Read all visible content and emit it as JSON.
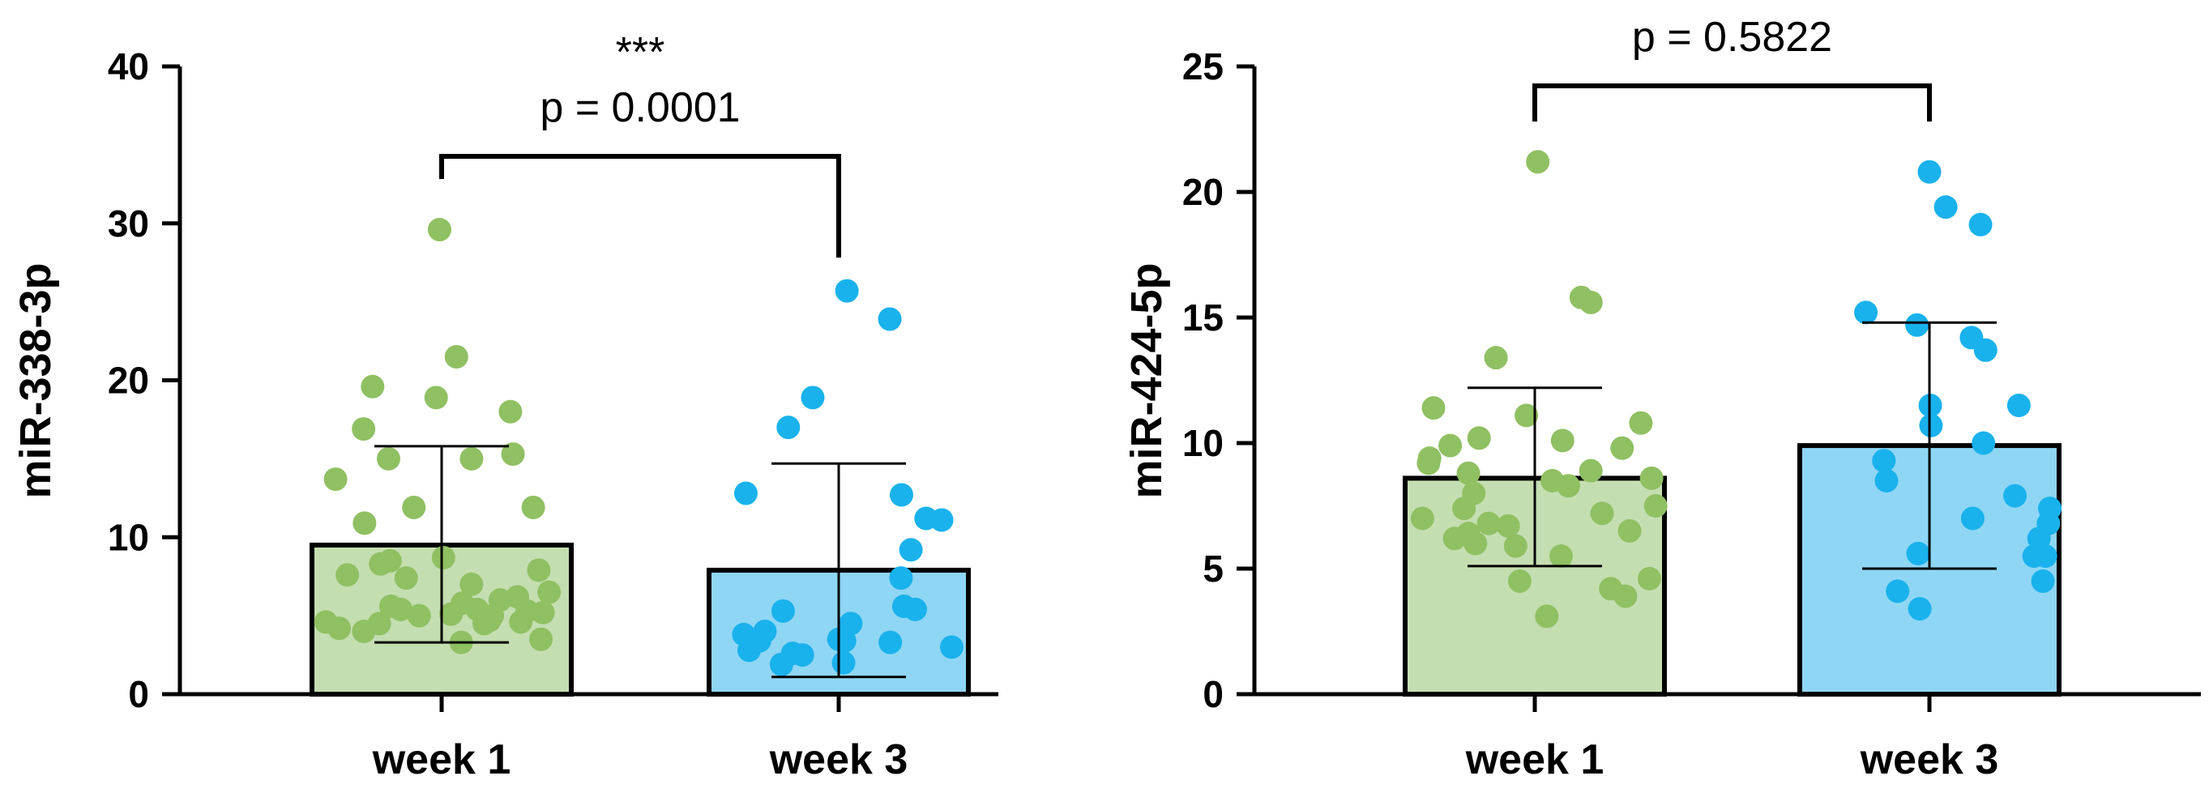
{
  "chart_data": [
    {
      "type": "bar",
      "title": "",
      "xlabel": "",
      "ylabel": "miR-338-3p",
      "ylim": [
        0,
        40
      ],
      "yticks": [
        0,
        10,
        20,
        30,
        40
      ],
      "categories": [
        "week 1",
        "week 3"
      ],
      "bars": [
        {
          "category": "week 1",
          "mean": 9.5,
          "err_low": 3.3,
          "err_high": 15.8,
          "fill": "#c5deb1",
          "point_color": "#8fc062",
          "points": [
            29.6,
            21.5,
            19.6,
            18.9,
            18.0,
            16.9,
            15.3,
            15.0,
            15.0,
            13.7,
            11.9,
            11.9,
            10.9,
            8.7,
            8.5,
            8.3,
            7.9,
            7.6,
            7.4,
            7.0,
            6.5,
            6.2,
            6.0,
            5.8,
            5.6,
            5.4,
            5.4,
            5.3,
            5.2,
            5.1,
            5.0,
            5.0,
            4.7,
            4.6,
            4.6,
            4.5,
            4.5,
            4.2,
            4.0,
            3.5,
            3.3
          ]
        },
        {
          "category": "week 3",
          "mean": 7.9,
          "err_low": 1.1,
          "err_high": 14.7,
          "fill": "#8fd6f4",
          "point_color": "#19b2ec",
          "points": [
            25.7,
            23.9,
            18.9,
            17.0,
            12.8,
            12.7,
            11.2,
            11.1,
            9.2,
            7.4,
            5.6,
            5.4,
            5.3,
            4.5,
            4.0,
            3.8,
            3.5,
            3.4,
            3.4,
            3.3,
            3.0,
            2.8,
            2.6,
            2.5,
            2.0,
            1.9
          ]
        }
      ],
      "comparison": {
        "stars": "***",
        "label": "p = 0.0001"
      }
    },
    {
      "type": "bar",
      "title": "",
      "xlabel": "",
      "ylabel": "miR-424-5p",
      "ylim": [
        0,
        25
      ],
      "yticks": [
        0,
        5,
        10,
        15,
        20,
        25
      ],
      "categories": [
        "week 1",
        "week 3"
      ],
      "bars": [
        {
          "category": "week 1",
          "mean": 8.6,
          "err_low": 5.1,
          "err_high": 12.2,
          "fill": "#c5deb1",
          "point_color": "#8fc062",
          "points": [
            21.2,
            15.8,
            15.6,
            13.4,
            11.4,
            11.1,
            10.8,
            10.2,
            10.1,
            9.9,
            9.8,
            9.4,
            9.2,
            8.9,
            8.8,
            8.6,
            8.5,
            8.3,
            8.0,
            7.5,
            7.4,
            7.2,
            7.0,
            6.8,
            6.7,
            6.5,
            6.4,
            6.2,
            6.0,
            5.9,
            5.5,
            4.6,
            4.5,
            4.2,
            3.9,
            3.1
          ]
        },
        {
          "category": "week 3",
          "mean": 9.9,
          "err_low": 5.0,
          "err_high": 14.8,
          "fill": "#8fd6f4",
          "point_color": "#19b2ec",
          "points": [
            20.8,
            19.4,
            18.7,
            15.2,
            14.7,
            14.2,
            13.7,
            11.5,
            11.5,
            10.7,
            10.0,
            9.3,
            8.5,
            7.9,
            7.4,
            7.0,
            6.8,
            6.2,
            5.6,
            5.5,
            5.5,
            4.5,
            4.1,
            3.4
          ]
        }
      ],
      "comparison": {
        "stars": "",
        "label": "p = 0.5822"
      }
    }
  ]
}
